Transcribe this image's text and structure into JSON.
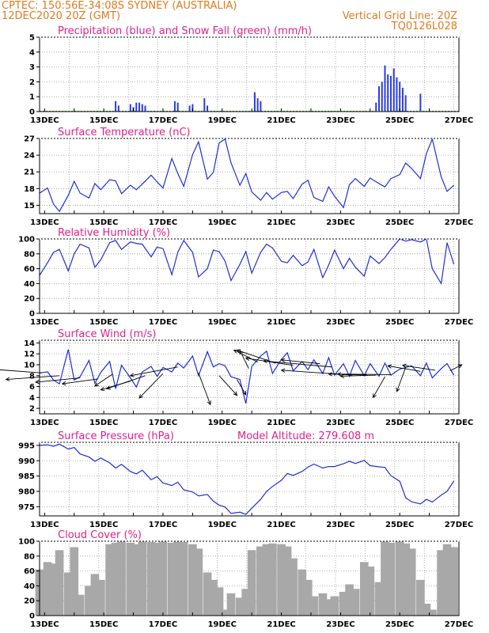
{
  "header": {
    "left_line1": "CPTEC:    150:56E-34:08S   SYDNEY (AUSTRALIA)",
    "left_line2": "12DEC2020 20Z (GMT)",
    "right_line1": "Vertical Grid Line: 20Z",
    "right_line2": "TQ0126L028"
  },
  "colors": {
    "header_text": "#e07a1f",
    "panel_title": "#e0208a",
    "line": "#1f2fd6",
    "precip": "#2a3be8",
    "snow": "#2aa830",
    "cloud": "#a8a8a8",
    "grid": "#9a9a9a",
    "wind_arrow": "#000000"
  },
  "x_axis": {
    "start": "12DEC2020 20Z",
    "end": "27DEC2020",
    "tick_labels": [
      "13DEC",
      "15DEC",
      "17DEC",
      "19DEC",
      "21DEC",
      "23DEC",
      "25DEC",
      "27DEC"
    ]
  },
  "chart_data": [
    {
      "type": "bar",
      "title": "Precipitation (blue) and Snow Fall (green) (mm/h)",
      "ylim": [
        0,
        5
      ],
      "yticks": [
        "0",
        "1",
        "2",
        "3",
        "4",
        "5"
      ],
      "series": [
        {
          "name": "Precipitation",
          "points": [
            [
              15.4,
              0.7
            ],
            [
              15.5,
              0.4
            ],
            [
              15.9,
              0.5
            ],
            [
              16.0,
              0.3
            ],
            [
              16.1,
              0.6
            ],
            [
              16.2,
              0.6
            ],
            [
              16.3,
              0.5
            ],
            [
              16.4,
              0.4
            ],
            [
              17.4,
              0.7
            ],
            [
              17.5,
              0.6
            ],
            [
              17.9,
              0.4
            ],
            [
              18.0,
              0.5
            ],
            [
              18.4,
              0.9
            ],
            [
              18.5,
              0.4
            ],
            [
              20.1,
              1.3
            ],
            [
              20.2,
              0.9
            ],
            [
              20.3,
              0.7
            ],
            [
              24.2,
              0.6
            ],
            [
              24.3,
              1.7
            ],
            [
              24.4,
              2.0
            ],
            [
              24.5,
              3.1
            ],
            [
              24.6,
              2.5
            ],
            [
              24.7,
              2.4
            ],
            [
              24.8,
              2.9
            ],
            [
              24.9,
              2.3
            ],
            [
              25.0,
              2.0
            ],
            [
              25.1,
              1.6
            ],
            [
              25.2,
              1.1
            ],
            [
              25.7,
              1.2
            ]
          ]
        },
        {
          "name": "Snow Fall",
          "points": []
        }
      ]
    },
    {
      "type": "line",
      "title": "Surface Temperature (nC)",
      "ylim": [
        13.5,
        27
      ],
      "yticks": [
        "15",
        "18",
        "21",
        "24",
        "27"
      ],
      "x": [
        12.83,
        13.1,
        13.3,
        13.5,
        13.8,
        14.0,
        14.2,
        14.5,
        14.7,
        14.9,
        15.2,
        15.4,
        15.6,
        15.9,
        16.1,
        16.3,
        16.6,
        16.8,
        17.0,
        17.3,
        17.5,
        17.7,
        18.0,
        18.2,
        18.5,
        18.7,
        18.9,
        19.1,
        19.3,
        19.6,
        19.8,
        20.0,
        20.3,
        20.5,
        20.7,
        21.0,
        21.2,
        21.4,
        21.7,
        21.9,
        22.1,
        22.4,
        22.6,
        22.8,
        23.1,
        23.3,
        23.5,
        23.8,
        24.0,
        24.3,
        24.5,
        24.7,
        25.0,
        25.2,
        25.4,
        25.7,
        25.9,
        26.1,
        26.4,
        26.6,
        26.83
      ],
      "series": [
        {
          "name": "Temperature",
          "values": [
            17.2,
            18.1,
            15.2,
            13.9,
            16.8,
            19.3,
            17.2,
            16.3,
            18.9,
            17.8,
            19.6,
            19.4,
            17.1,
            18.6,
            17.8,
            18.8,
            20.4,
            19.2,
            18.1,
            23.4,
            20.7,
            18.4,
            24.1,
            26.4,
            19.7,
            20.9,
            26.2,
            26.9,
            22.6,
            18.6,
            20.7,
            17.4,
            15.9,
            17.3,
            16.1,
            17.3,
            17.5,
            16.2,
            18.8,
            19.5,
            16.4,
            15.7,
            18.3,
            16.6,
            14.6,
            18.7,
            19.8,
            18.4,
            19.9,
            18.9,
            18.3,
            19.8,
            20.5,
            22.6,
            21.6,
            19.8,
            24.3,
            26.9,
            20.1,
            17.5,
            18.6
          ]
        }
      ]
    },
    {
      "type": "line",
      "title": "Relative Humidity (%)",
      "ylim": [
        0,
        100
      ],
      "yticks": [
        "0",
        "20",
        "40",
        "60",
        "80",
        "100"
      ],
      "x": [
        12.83,
        13.1,
        13.3,
        13.5,
        13.8,
        14.0,
        14.2,
        14.5,
        14.7,
        14.9,
        15.2,
        15.4,
        15.6,
        15.9,
        16.1,
        16.3,
        16.6,
        16.8,
        17.0,
        17.3,
        17.5,
        17.7,
        18.0,
        18.2,
        18.5,
        18.7,
        18.9,
        19.1,
        19.3,
        19.6,
        19.8,
        20.0,
        20.3,
        20.5,
        20.7,
        21.0,
        21.2,
        21.4,
        21.7,
        21.9,
        22.1,
        22.4,
        22.6,
        22.8,
        23.1,
        23.3,
        23.5,
        23.8,
        24.0,
        24.3,
        24.5,
        24.7,
        25.0,
        25.2,
        25.4,
        25.7,
        25.9,
        26.1,
        26.4,
        26.6,
        26.83
      ],
      "series": [
        {
          "name": "Relative Humidity",
          "values": [
            51,
            68,
            82,
            86,
            57,
            80,
            93,
            88,
            62,
            72,
            95,
            98,
            86,
            96,
            94,
            93,
            76,
            89,
            87,
            52,
            82,
            98,
            82,
            49,
            60,
            85,
            83,
            70,
            44,
            66,
            83,
            54,
            82,
            93,
            88,
            70,
            68,
            78,
            64,
            69,
            86,
            48,
            65,
            85,
            60,
            74,
            62,
            50,
            77,
            67,
            75,
            86,
            100,
            97,
            99,
            96,
            100,
            60,
            40,
            95,
            66
          ]
        }
      ]
    },
    {
      "type": "line",
      "title": "Surface Wind (m/s)",
      "ylim": [
        1,
        14.5
      ],
      "yticks": [
        "2",
        "4",
        "6",
        "8",
        "10",
        "12",
        "14"
      ],
      "x": [
        12.83,
        13.1,
        13.3,
        13.5,
        13.8,
        14.0,
        14.2,
        14.5,
        14.7,
        14.9,
        15.2,
        15.4,
        15.6,
        15.9,
        16.1,
        16.3,
        16.6,
        16.8,
        17.0,
        17.3,
        17.5,
        17.7,
        18.0,
        18.2,
        18.5,
        18.7,
        18.9,
        19.1,
        19.3,
        19.6,
        19.8,
        20.0,
        20.3,
        20.5,
        20.7,
        21.0,
        21.2,
        21.4,
        21.7,
        21.9,
        22.1,
        22.4,
        22.6,
        22.8,
        23.1,
        23.3,
        23.5,
        23.8,
        24.0,
        24.3,
        24.5,
        24.7,
        25.0,
        25.2,
        25.4,
        25.7,
        25.9,
        26.1,
        26.4,
        26.6,
        26.83
      ],
      "series": [
        {
          "name": "Wind Speed",
          "values": [
            8.5,
            8.7,
            7.2,
            6.5,
            12.8,
            7.2,
            7.8,
            10.8,
            6.6,
            8.6,
            10.6,
            5.6,
            9.9,
            7.6,
            5.9,
            8.7,
            9.7,
            7.9,
            9.5,
            8.7,
            10.3,
            9.4,
            11.6,
            8.0,
            12.4,
            9.6,
            10.2,
            9.8,
            7.8,
            7.3,
            2.9,
            9.7,
            11.6,
            12.5,
            8.4,
            11.0,
            12.2,
            8.9,
            10.6,
            9.1,
            10.9,
            8.4,
            11.3,
            8.1,
            10.2,
            7.9,
            10.8,
            8.0,
            10.2,
            7.9,
            10.3,
            8.1,
            9.2,
            9.5,
            9.8,
            8.0,
            10.3,
            7.6,
            9.3,
            10.2,
            8.1
          ]
        }
      ],
      "wind_vectors": [
        [
          12.9,
          8.5,
          -2.2,
          0.9
        ],
        [
          13.5,
          8.0,
          -1.8,
          -0.7
        ],
        [
          14.2,
          7.6,
          -1.5,
          -0.8
        ],
        [
          14.8,
          7.4,
          -1.2,
          -0.9
        ],
        [
          15.3,
          8.3,
          -0.6,
          -2.2
        ],
        [
          15.9,
          7.0,
          -1.0,
          -1.6
        ],
        [
          16.4,
          8.0,
          -1.3,
          -2.4
        ],
        [
          17.0,
          8.4,
          -0.8,
          -4.5
        ],
        [
          17.5,
          9.6,
          -1.6,
          -1.6
        ],
        [
          18.2,
          8.5,
          0.4,
          -5.8
        ],
        [
          18.9,
          8.0,
          0.6,
          -3.6
        ],
        [
          19.5,
          7.3,
          0.3,
          -2.8
        ],
        [
          19.9,
          9.3,
          -0.3,
          3.3
        ],
        [
          20.2,
          10.5,
          -0.8,
          2.2
        ],
        [
          20.8,
          10.3,
          -1.3,
          2.4
        ],
        [
          21.4,
          9.9,
          -1.6,
          1.3
        ],
        [
          22.3,
          10.2,
          -1.3,
          0.7
        ],
        [
          22.7,
          9.6,
          -2.3,
          1.1
        ],
        [
          23.4,
          8.1,
          -2.4,
          0.9
        ],
        [
          23.9,
          8.1,
          -1.3,
          0.2
        ],
        [
          24.7,
          8.2,
          -1.8,
          0.1
        ],
        [
          25.7,
          8.8,
          -1.1,
          1.0
        ],
        [
          26.2,
          9.0,
          -1.1,
          0.9
        ],
        [
          26.7,
          8.9,
          0.4,
          1.1
        ],
        [
          24.2,
          8.1,
          -1.2,
          -0.2
        ],
        [
          24.5,
          7.8,
          -0.4,
          -3.8
        ],
        [
          25.2,
          9.5,
          -0.3,
          -4.4
        ]
      ]
    },
    {
      "type": "line",
      "title": "Surface Pressure (hPa)",
      "annotation": "Model Altitude: 279.608 m",
      "ylim": [
        972,
        996
      ],
      "yticks": [
        "975",
        "980",
        "985",
        "990",
        "995"
      ],
      "x": [
        12.83,
        13.1,
        13.3,
        13.5,
        13.8,
        14.0,
        14.2,
        14.5,
        14.7,
        14.9,
        15.2,
        15.4,
        15.6,
        15.9,
        16.1,
        16.3,
        16.6,
        16.8,
        17.0,
        17.3,
        17.5,
        17.7,
        18.0,
        18.2,
        18.5,
        18.7,
        18.9,
        19.1,
        19.3,
        19.6,
        19.8,
        20.0,
        20.3,
        20.5,
        20.7,
        21.0,
        21.2,
        21.4,
        21.7,
        21.9,
        22.1,
        22.4,
        22.6,
        22.8,
        23.1,
        23.3,
        23.5,
        23.8,
        24.0,
        24.3,
        24.5,
        24.7,
        25.0,
        25.2,
        25.4,
        25.7,
        25.9,
        26.1,
        26.4,
        26.6,
        26.83
      ],
      "series": [
        {
          "name": "Pressure",
          "values": [
            995.0,
            995.2,
            994.7,
            995.4,
            993.8,
            994.3,
            992.2,
            991.2,
            989.8,
            990.9,
            989.3,
            987.6,
            988.8,
            986.5,
            985.7,
            986.9,
            983.8,
            984.8,
            982.7,
            981.9,
            983.0,
            980.5,
            979.8,
            978.5,
            979.0,
            976.8,
            975.5,
            974.9,
            972.8,
            973.2,
            972.5,
            974.5,
            977.4,
            980.0,
            981.6,
            983.6,
            985.8,
            985.2,
            986.5,
            987.9,
            988.9,
            987.6,
            988.1,
            988.1,
            989.0,
            989.8,
            989.1,
            990.1,
            988.4,
            988.0,
            987.8,
            985.1,
            983.3,
            977.9,
            976.6,
            975.9,
            977.4,
            976.5,
            978.8,
            980.0,
            983.4
          ]
        }
      ]
    },
    {
      "type": "area",
      "title": "Cloud Cover (%)",
      "ylim": [
        0,
        100
      ],
      "yticks": [
        "0",
        "20",
        "40",
        "60",
        "80",
        "100"
      ],
      "x": [
        12.83,
        13.1,
        13.3,
        13.5,
        13.8,
        14.0,
        14.2,
        14.5,
        14.7,
        14.9,
        15.2,
        15.4,
        15.6,
        15.9,
        16.1,
        16.3,
        16.6,
        16.8,
        17.0,
        17.3,
        17.5,
        17.7,
        18.0,
        18.2,
        18.5,
        18.7,
        18.9,
        19.1,
        19.3,
        19.6,
        19.8,
        20.0,
        20.3,
        20.5,
        20.7,
        21.0,
        21.2,
        21.4,
        21.7,
        21.9,
        22.1,
        22.4,
        22.6,
        22.8,
        23.1,
        23.3,
        23.5,
        23.8,
        24.0,
        24.3,
        24.5,
        24.7,
        25.0,
        25.2,
        25.4,
        25.7,
        25.9,
        26.1,
        26.4,
        26.6,
        26.83
      ],
      "series": [
        {
          "name": "Cloud Cover",
          "values": [
            62,
            72,
            70,
            88,
            58,
            92,
            28,
            40,
            56,
            48,
            96,
            98,
            100,
            98,
            96,
            100,
            99,
            98,
            100,
            98,
            100,
            99,
            96,
            90,
            58,
            48,
            38,
            8,
            30,
            24,
            36,
            88,
            93,
            96,
            97,
            96,
            93,
            77,
            62,
            48,
            26,
            30,
            22,
            26,
            32,
            42,
            36,
            72,
            66,
            45,
            100,
            98,
            100,
            97,
            90,
            48,
            16,
            8,
            88,
            96,
            92
          ]
        }
      ]
    }
  ]
}
